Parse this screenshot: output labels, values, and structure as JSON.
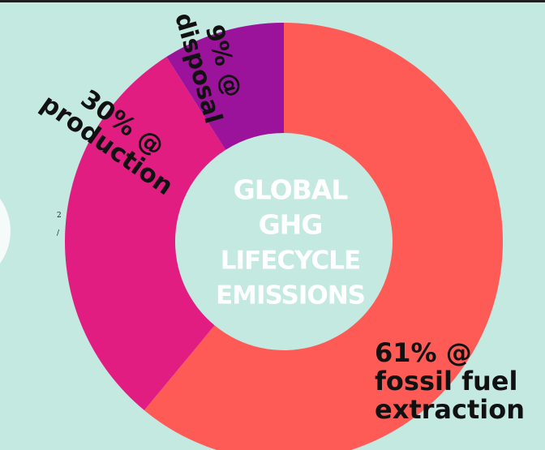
{
  "chart_data": {
    "type": "pie",
    "title": "GLOBAL GHG LIFECYCLE EMISSIONS",
    "title_lines": [
      "GLOBAL",
      "GHG",
      "LIFECYCLE",
      "EMISSIONS"
    ],
    "donut": true,
    "legend": "none",
    "grid": false,
    "slices": [
      {
        "label": "fossil fuel extraction",
        "value": 61,
        "color": "#fe5b57",
        "text_lines": [
          "61% @",
          "fossil fuel",
          "extraction"
        ]
      },
      {
        "label": "production",
        "value": 30,
        "color": "#e21d82",
        "text_lines": [
          "30% @",
          "production"
        ]
      },
      {
        "label": "disposal",
        "value": 9,
        "color": "#9b139b",
        "text_lines": [
          "9% @",
          "disposal"
        ]
      }
    ]
  },
  "stray_marks": [
    "2",
    "/"
  ],
  "colors": {
    "background": "#c3e9e1",
    "top_border": "#1f1f1f",
    "center_text": "#ffffff",
    "label_text": "#111111"
  }
}
